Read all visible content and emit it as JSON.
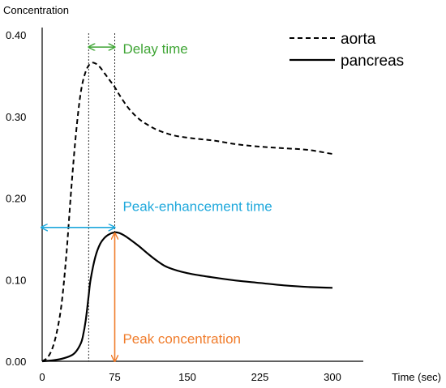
{
  "chart_data": {
    "type": "line",
    "title": "",
    "xlabel": "Time (sec)",
    "ylabel": "Concentration",
    "xlim": [
      0,
      300
    ],
    "ylim": [
      0,
      0.4
    ],
    "x_ticks": [
      0,
      75,
      150,
      225,
      300
    ],
    "x_tick_labels": [
      "0",
      "75",
      "150",
      "225",
      "300"
    ],
    "y_ticks": [
      0,
      0.1,
      0.2,
      0.3,
      0.4
    ],
    "y_tick_labels": [
      "0.00",
      "0.10",
      "0.20",
      "0.30",
      "0.40"
    ],
    "grid": false,
    "legend": {
      "placement": "top-right",
      "entries": [
        {
          "name": "aorta",
          "style": "dashed"
        },
        {
          "name": "pancreas",
          "style": "solid"
        }
      ]
    },
    "series": [
      {
        "name": "aorta",
        "style": "dashed",
        "color": "#000000",
        "x": [
          0,
          5,
          10,
          15,
          20,
          25,
          30,
          35,
          40,
          45,
          50,
          55,
          60,
          65,
          70,
          75,
          80,
          90,
          100,
          110,
          120,
          135,
          150,
          165,
          180,
          200,
          225,
          250,
          275,
          300
        ],
        "y": [
          0.0,
          0.004,
          0.014,
          0.035,
          0.07,
          0.13,
          0.21,
          0.28,
          0.33,
          0.355,
          0.365,
          0.365,
          0.36,
          0.352,
          0.344,
          0.336,
          0.326,
          0.309,
          0.297,
          0.289,
          0.283,
          0.277,
          0.274,
          0.272,
          0.27,
          0.266,
          0.263,
          0.261,
          0.259,
          0.254
        ]
      },
      {
        "name": "pancreas",
        "style": "solid",
        "color": "#000000",
        "x": [
          0,
          10,
          20,
          30,
          35,
          40,
          42,
          45,
          48,
          50,
          55,
          60,
          65,
          70,
          75,
          80,
          85,
          90,
          100,
          110,
          120,
          130,
          150,
          175,
          200,
          225,
          250,
          275,
          300
        ],
        "y": [
          0.0,
          0.001,
          0.003,
          0.007,
          0.012,
          0.022,
          0.03,
          0.05,
          0.08,
          0.1,
          0.128,
          0.144,
          0.152,
          0.156,
          0.158,
          0.157,
          0.154,
          0.15,
          0.141,
          0.131,
          0.122,
          0.115,
          0.108,
          0.103,
          0.099,
          0.096,
          0.093,
          0.091,
          0.09
        ]
      }
    ],
    "vertical_markers": [
      {
        "name": "aorta-peak-line",
        "x": 48,
        "style": "dotted"
      },
      {
        "name": "pancreas-peak-line",
        "x": 75,
        "style": "dotted"
      }
    ],
    "annotations": [
      {
        "text": "Delay time",
        "color": "#3fa535",
        "kind": "horizontal-arrow",
        "from_x": 48,
        "to_x": 75,
        "y": 0.385,
        "text_x": 80,
        "text_y": 0.377
      },
      {
        "text": "Peak-enhancement time",
        "color": "#1ea8dc",
        "kind": "horizontal-arrow",
        "from_x": 0,
        "to_x": 75,
        "y": 0.164,
        "text_x": 80,
        "text_y": 0.184
      },
      {
        "text": "Peak concentration",
        "color": "#f07c2b",
        "kind": "vertical-arrow",
        "x": 75,
        "from_y": 0,
        "to_y": 0.157,
        "text_x": 80,
        "text_y": 0.022
      }
    ]
  }
}
